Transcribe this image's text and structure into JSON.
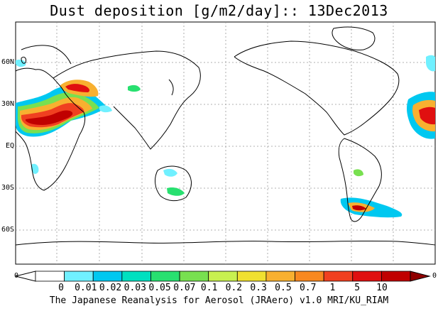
{
  "title": "Dust deposition [g/m2/day]:: 13Dec2013",
  "lat_labels": [
    "60N",
    "30N",
    "EQ",
    "30S",
    "60S"
  ],
  "colorbar": {
    "edge_left": "0",
    "edge_right": "0",
    "labels": [
      "0",
      "0.01",
      "0.02",
      "0.03",
      "0.05",
      "0.07",
      "0.1",
      "0.2",
      "0.3",
      "0.5",
      "0.7",
      "1",
      "5",
      "10"
    ],
    "colors": [
      "#ffffff",
      "#70f0ff",
      "#00c8f0",
      "#00e0c0",
      "#28e070",
      "#78e050",
      "#c8f050",
      "#f0e030",
      "#f8b030",
      "#f88820",
      "#f04020",
      "#e01010",
      "#c00000",
      "#900000"
    ]
  },
  "footer": "The Japanese Reanalysis for Aerosol (JRAero) v1.0 MRI/KU_RIAM"
}
